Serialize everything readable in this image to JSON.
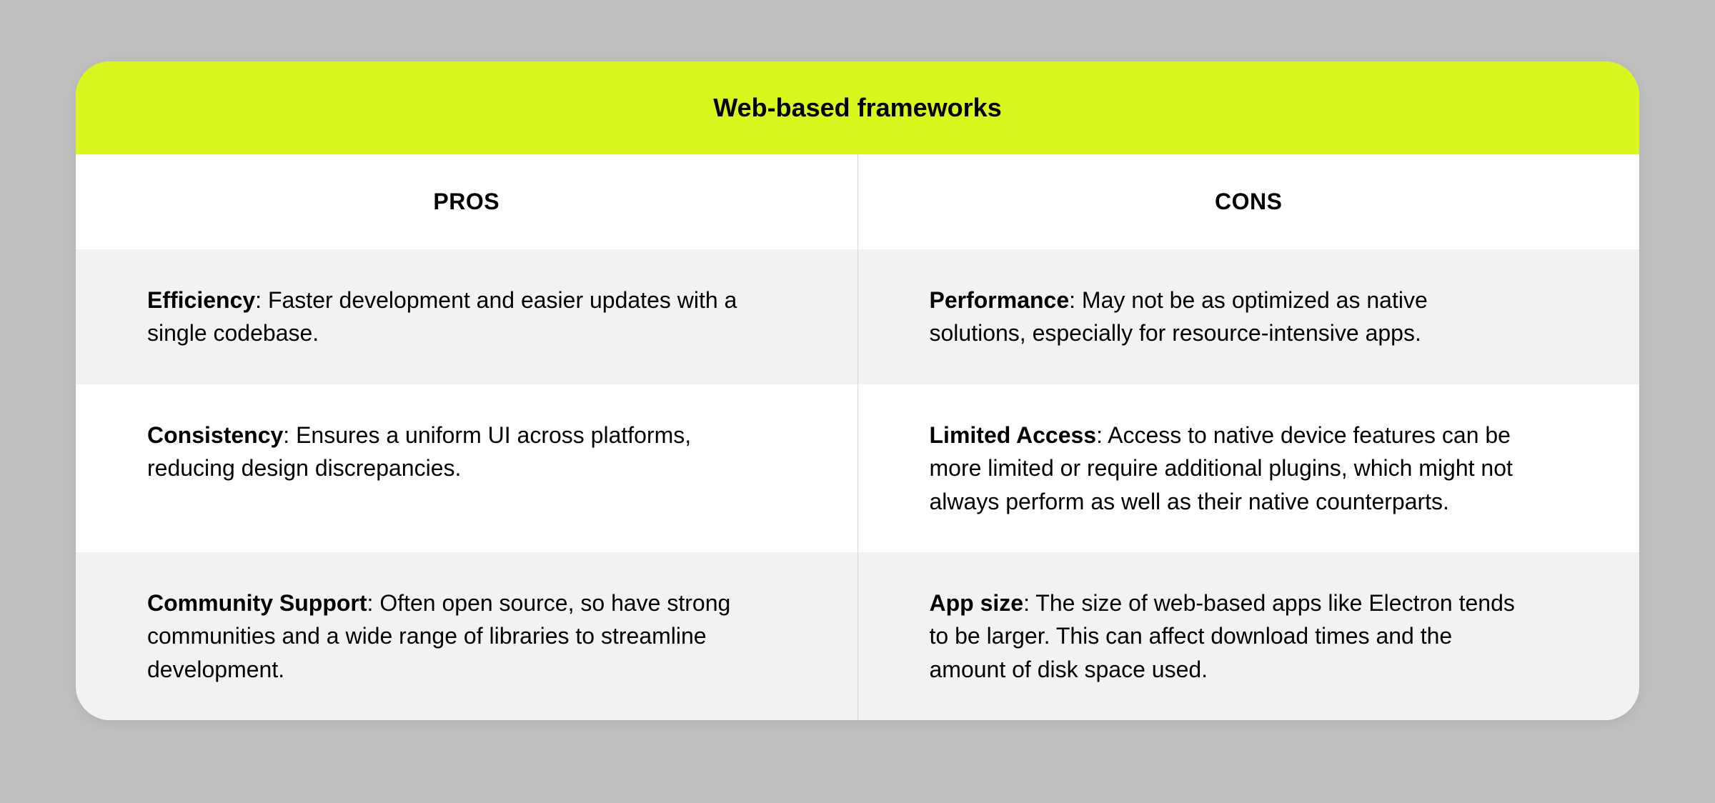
{
  "card": {
    "title": "Web-based frameworks",
    "header_bg": "#d9f71d",
    "header_color": "#000000",
    "title_fontsize": 36,
    "border_radius": 48,
    "shadow": "0 4px 16px rgba(0,0,0,0.08)",
    "columns": [
      {
        "label": "PROS"
      },
      {
        "label": "CONS"
      }
    ],
    "col_header_fontsize": 32,
    "cell_fontsize": 32,
    "row_bg_odd": "#f2f2f2",
    "row_bg_even": "#ffffff",
    "divider_color": "#d8d8d8",
    "page_bg": "#bfbfbf",
    "rows": [
      {
        "pros": {
          "label": "Efficiency",
          "text": ": Faster development and easier updates with a single codebase."
        },
        "cons": {
          "label": "Performance",
          "text": ": May not be as optimized as native solutions, especially for resource-intensive apps."
        }
      },
      {
        "pros": {
          "label": "Consistency",
          "text": ": Ensures a uniform UI across platforms, reducing design discrepancies."
        },
        "cons": {
          "label": "Limited Access",
          "text": ": Access to native device features can be more limited or require additional plugins, which might not always perform as well as their native counterparts."
        }
      },
      {
        "pros": {
          "label": "Community Support",
          "text": ": Often open source, so have strong communities and a wide range of libraries to streamline development."
        },
        "cons": {
          "label": "App size",
          "text": ": The size of web-based apps like Electron tends to be larger. This can affect download times and the amount of disk space used."
        }
      }
    ]
  }
}
